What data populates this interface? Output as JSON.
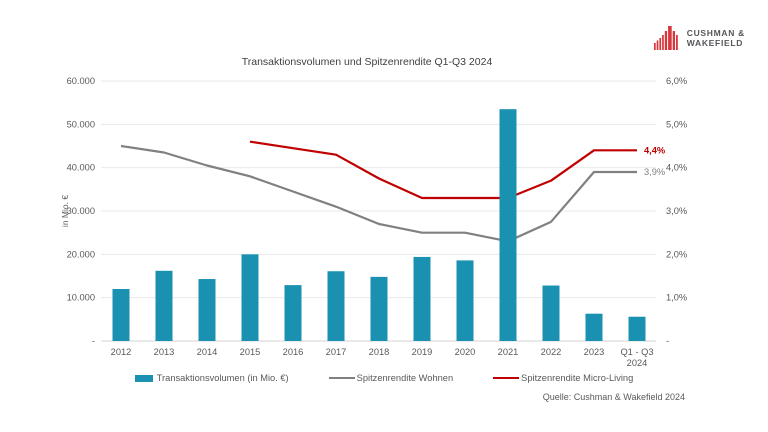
{
  "title": "Transaktionsvolumen und Spitzenrendite Q1-Q3 2024",
  "logo": {
    "line1": "CUSHMAN &",
    "line2": "WAKEFIELD",
    "red": "#d8363c",
    "text_color": "#54565a"
  },
  "source": "Quelle: Cushman & Wakefield 2024",
  "colors": {
    "bar": "#1a91b1",
    "wohnen": "#808080",
    "micro": "#c00000",
    "grid": "#eaeaea",
    "baseline": "#d4d4d4",
    "axis_text": "#595959",
    "title_text": "#3f3f3f"
  },
  "chart_data": {
    "type": "bar+line",
    "title": "Transaktionsvolumen und Spitzenrendite Q1-Q3 2024",
    "categories": [
      "2012",
      "2013",
      "2014",
      "2015",
      "2016",
      "2017",
      "2018",
      "2019",
      "2020",
      "2021",
      "2022",
      "2023",
      "Q1 - Q3 2024"
    ],
    "categories_display": [
      [
        "2012"
      ],
      [
        "2013"
      ],
      [
        "2014"
      ],
      [
        "2015"
      ],
      [
        "2016"
      ],
      [
        "2017"
      ],
      [
        "2018"
      ],
      [
        "2019"
      ],
      [
        "2020"
      ],
      [
        "2021"
      ],
      [
        "2022"
      ],
      [
        "2023"
      ],
      [
        "Q1 - Q3",
        "2024"
      ]
    ],
    "bar_series": {
      "name": "Transaktionsvolumen (in Mio. €)",
      "axis": "left",
      "values": [
        12000,
        16200,
        14300,
        20000,
        12900,
        16100,
        14800,
        19400,
        18600,
        53500,
        12800,
        6300,
        5600
      ]
    },
    "line_series": [
      {
        "name": "Spitzenrendite Wohnen",
        "axis": "right",
        "color_key": "wohnen",
        "values": [
          4.5,
          4.35,
          4.05,
          3.8,
          3.45,
          3.1,
          2.7,
          2.5,
          2.5,
          2.3,
          2.75,
          3.9,
          3.9
        ],
        "end_label": "3,9%",
        "end_label_bold": false
      },
      {
        "name": "Spitzenrendite Micro-Living",
        "axis": "right",
        "color_key": "micro",
        "values": [
          null,
          null,
          null,
          4.6,
          4.45,
          4.3,
          3.75,
          3.3,
          3.3,
          3.3,
          3.7,
          4.4,
          4.4
        ],
        "end_label": "4,4%",
        "end_label_bold": true
      }
    ],
    "left_axis": {
      "title": "in Mio. €",
      "min": 0,
      "max": 60000,
      "tick_labels_top_down": [
        "60.000",
        "50.000",
        "40.000",
        "30.000",
        "20.000",
        "10.000",
        "-"
      ]
    },
    "right_axis": {
      "min": 0,
      "max": 6,
      "tick_labels_top_down": [
        "6,0%",
        "5,0%",
        "4,0%",
        "3,0%",
        "2,0%",
        "1,0%",
        "-"
      ]
    },
    "grid": true,
    "legend_position": "bottom"
  }
}
